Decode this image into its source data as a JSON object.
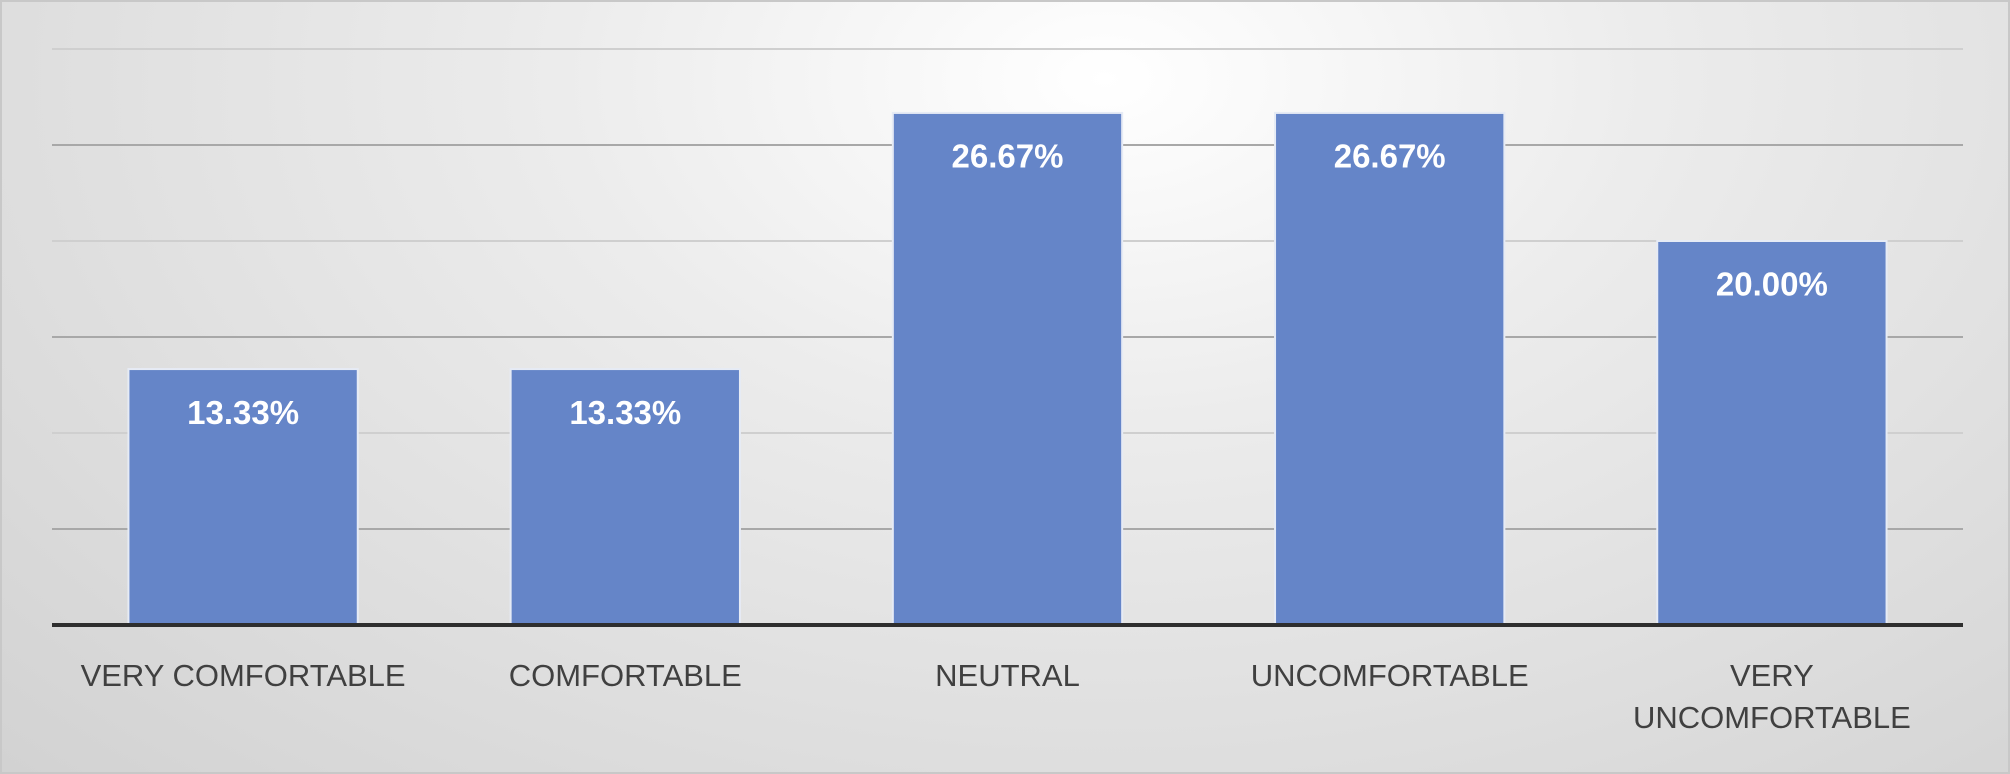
{
  "chart_data": {
    "type": "bar",
    "categories": [
      "VERY COMFORTABLE",
      "COMFORTABLE",
      "NEUTRAL",
      "UNCOMFORTABLE",
      "VERY UNCOMFORTABLE"
    ],
    "values": [
      13.33,
      13.33,
      26.67,
      26.67,
      20.0
    ],
    "value_labels": [
      "13.33%",
      "13.33%",
      "26.67%",
      "26.67%",
      "20.00%"
    ],
    "color": "#6585c8",
    "ylim": [
      0,
      30
    ],
    "yticks": [
      0,
      5,
      10,
      15,
      20,
      25,
      30
    ],
    "grid": true
  }
}
